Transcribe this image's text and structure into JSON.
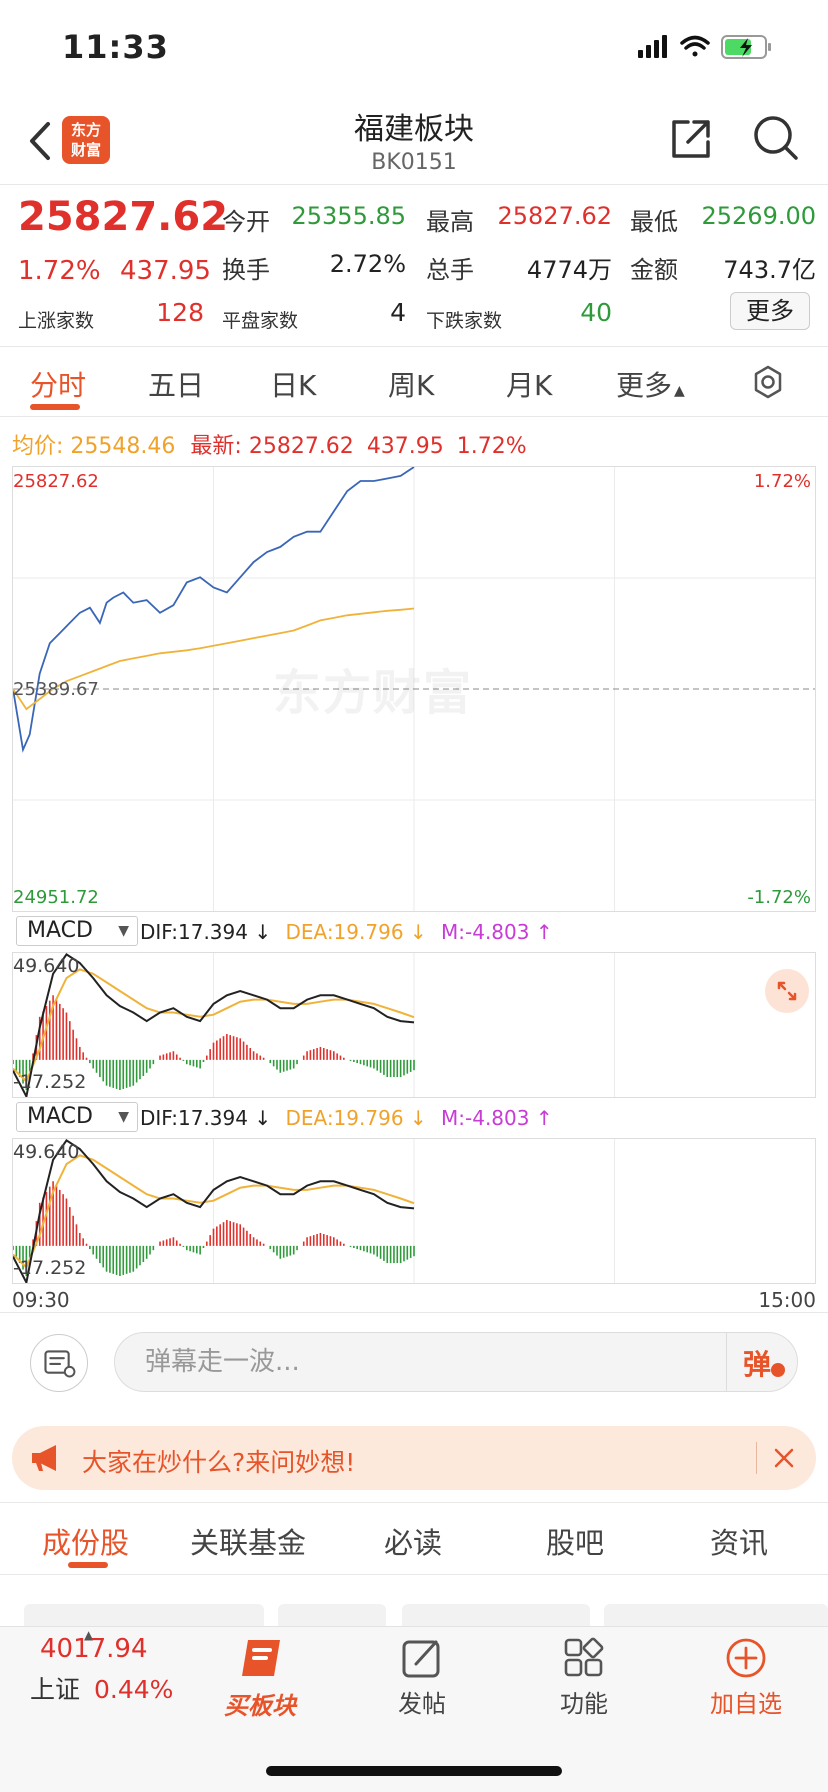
{
  "status": {
    "time": "11:33"
  },
  "header": {
    "logo_line1": "东方",
    "logo_line2": "财富",
    "title": "福建板块",
    "code": "BK0151"
  },
  "quote": {
    "price": "25827.62",
    "change_pct": "1.72%",
    "change_abs": "437.95",
    "open_label": "今开",
    "open": "25355.85",
    "high_label": "最高",
    "high": "25827.62",
    "low_label": "最低",
    "low": "25269.00",
    "turnover_label": "换手",
    "turnover": "2.72%",
    "volume_label": "总手",
    "volume": "4774万",
    "amount_label": "金额",
    "amount": "743.7亿",
    "up_label": "上涨家数",
    "up_count": "128",
    "flat_label": "平盘家数",
    "flat_count": "4",
    "down_label": "下跌家数",
    "down_count": "40",
    "more_label": "更多"
  },
  "tabs": [
    "分时",
    "五日",
    "日K",
    "周K",
    "月K",
    "更多"
  ],
  "info_line": {
    "avg_label": "均价:",
    "avg": "25548.46",
    "last_label": "最新:",
    "last": "25827.62",
    "chg": "437.95",
    "pct": "1.72%"
  },
  "chart_data": [
    {
      "type": "line",
      "y_max_label": "25827.62",
      "y_mid_label": "25389.67",
      "y_min_label": "24951.72",
      "pct_max_label": "1.72%",
      "pct_min_label": "-1.72%",
      "ylim": [
        24951.72,
        25827.62
      ],
      "x_start_label": "09:30",
      "x_end_label": "15:00",
      "session_minutes": 240,
      "watermark": "东方财富",
      "series": [
        {
          "color": "#3a66b8",
          "x": [
            0,
            3,
            5,
            8,
            11,
            14,
            17,
            20,
            23,
            26,
            28,
            30,
            33,
            36,
            40,
            44,
            48,
            52,
            56,
            60,
            64,
            68,
            72,
            76,
            80,
            84,
            88,
            92,
            96,
            100,
            104,
            108,
            112,
            116,
            120
          ],
          "values": [
            25389.67,
            25270,
            25300,
            25420,
            25480,
            25500,
            25520,
            25540,
            25550,
            25520,
            25560,
            25570,
            25580,
            25560,
            25565,
            25540,
            25555,
            25600,
            25610,
            25590,
            25580,
            25610,
            25640,
            25660,
            25670,
            25690,
            25700,
            25700,
            25740,
            25780,
            25800,
            25800,
            25805,
            25810,
            25827.62
          ]
        },
        {
          "color": "#f0b33a",
          "x": [
            0,
            4,
            8,
            12,
            16,
            20,
            24,
            28,
            32,
            36,
            40,
            44,
            48,
            52,
            56,
            60,
            64,
            68,
            72,
            76,
            80,
            84,
            88,
            92,
            96,
            100,
            104,
            108,
            112,
            116,
            120
          ],
          "values": [
            25389.67,
            25350,
            25370,
            25390,
            25405,
            25415,
            25425,
            25435,
            25445,
            25450,
            25455,
            25460,
            25463,
            25466,
            25470,
            25475,
            25480,
            25485,
            25490,
            25495,
            25500,
            25505,
            25515,
            25525,
            25530,
            25535,
            25538,
            25541,
            25544,
            25546,
            25548.46
          ]
        }
      ]
    },
    {
      "type": "bar",
      "indicator": "MACD",
      "dif_label": "DIF:17.394 ↓",
      "dea_label": "DEA:19.796 ↓",
      "m_label": "M:-4.803 ↑",
      "y_max_label": "49.640",
      "y_min_label": "-17.252",
      "ylim": [
        -17.252,
        49.64
      ],
      "x": [
        0,
        4,
        8,
        12,
        16,
        20,
        24,
        28,
        32,
        36,
        40,
        44,
        48,
        52,
        56,
        60,
        64,
        68,
        72,
        76,
        80,
        84,
        88,
        92,
        96,
        100,
        104,
        108,
        112,
        116,
        120
      ],
      "dif": [
        -5,
        -17,
        15,
        40,
        49,
        45,
        38,
        30,
        25,
        22,
        18,
        22,
        24,
        20,
        18,
        26,
        30,
        32,
        30,
        28,
        24,
        24,
        28,
        30,
        30,
        28,
        26,
        24,
        20,
        18,
        17.394
      ],
      "dea": [
        -4,
        -10,
        5,
        25,
        38,
        42,
        40,
        36,
        32,
        28,
        24,
        22,
        22,
        21,
        20,
        21,
        24,
        27,
        28,
        28,
        27,
        26,
        26,
        27,
        28,
        28,
        27,
        26,
        24,
        22,
        19.796
      ],
      "macd": [
        -2,
        -14,
        20,
        30,
        22,
        6,
        -4,
        -12,
        -14,
        -12,
        -6,
        2,
        4,
        -2,
        -4,
        8,
        12,
        10,
        4,
        0,
        -6,
        -4,
        4,
        6,
        4,
        0,
        -2,
        -4,
        -8,
        -8,
        -4.803
      ]
    },
    {
      "type": "bar",
      "indicator": "MACD",
      "dif_label": "DIF:17.394 ↓",
      "dea_label": "DEA:19.796 ↓",
      "m_label": "M:-4.803 ↑",
      "y_max_label": "49.640",
      "y_min_label": "-17.252",
      "ylim": [
        -17.252,
        49.64
      ]
    }
  ],
  "danmu": {
    "placeholder": "弹幕走一波...",
    "button": "弹"
  },
  "banner": {
    "text": "大家在炒什么?来问妙想!"
  },
  "bottom_tabs": [
    "成份股",
    "关联基金",
    "必读",
    "股吧",
    "资讯"
  ],
  "bottom_nav": {
    "index_value": "4017.94",
    "index_name": "上证",
    "index_pct": "0.44%",
    "buy_label": "买板块",
    "post_label": "发帖",
    "func_label": "功能",
    "add_label": "加自选"
  },
  "colors": {
    "accent": "#e8542a",
    "up": "#e0302b",
    "down": "#2e9a3a",
    "avg": "#f0b33a",
    "dif": "#222222",
    "dea": "#f0b33a",
    "m": "#c83bd6"
  }
}
